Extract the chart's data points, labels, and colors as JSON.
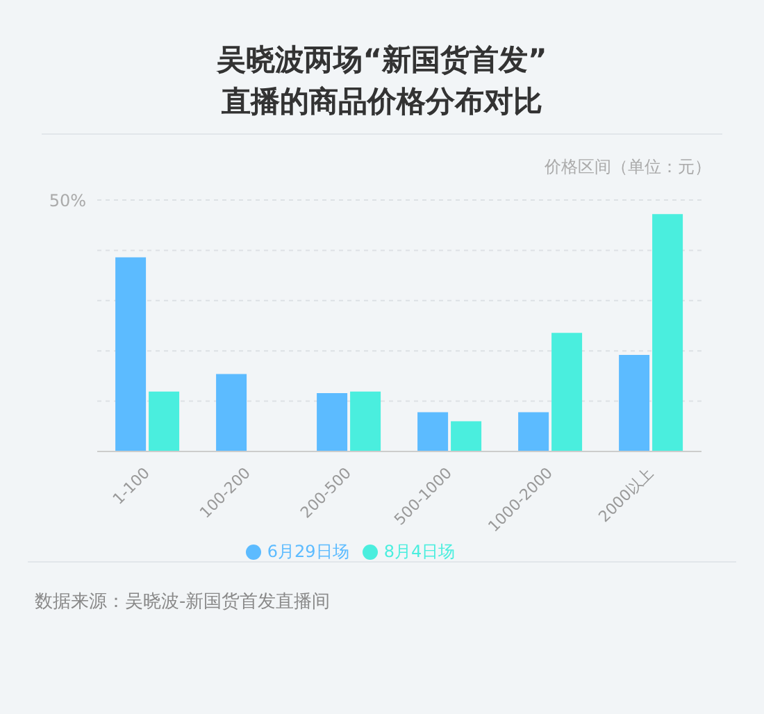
{
  "chart_data": {
    "type": "bar",
    "title": "吴晓波两场“新国货首发”\n直播的商品价格分布对比",
    "xlabel": "价格区间（单位：元）",
    "categories": [
      "1-100",
      "100-200",
      "200-500",
      "500-1000",
      "1000-2000",
      "2000以上"
    ],
    "series": [
      {
        "name": "6月29日场",
        "color": "#5cbbff",
        "values": [
          38.6,
          15.4,
          11.6,
          7.8,
          7.8,
          19.2
        ]
      },
      {
        "name": "8月4日场",
        "color": "#4aeede",
        "values": [
          11.9,
          0,
          11.9,
          6.0,
          23.6,
          47.2
        ]
      }
    ],
    "ylim": [
      0,
      50
    ],
    "yticks": [
      0,
      {
        "value": 10,
        "label": null
      },
      {
        "value": 20,
        "label": null
      },
      {
        "value": 30,
        "label": null
      },
      {
        "value": 40,
        "label": null
      },
      {
        "value": 50,
        "label": "50%"
      }
    ],
    "grid": "y",
    "legend": "bottom",
    "annotations": [
      "数据来源：吴晓波-新国货首发直播间"
    ]
  }
}
